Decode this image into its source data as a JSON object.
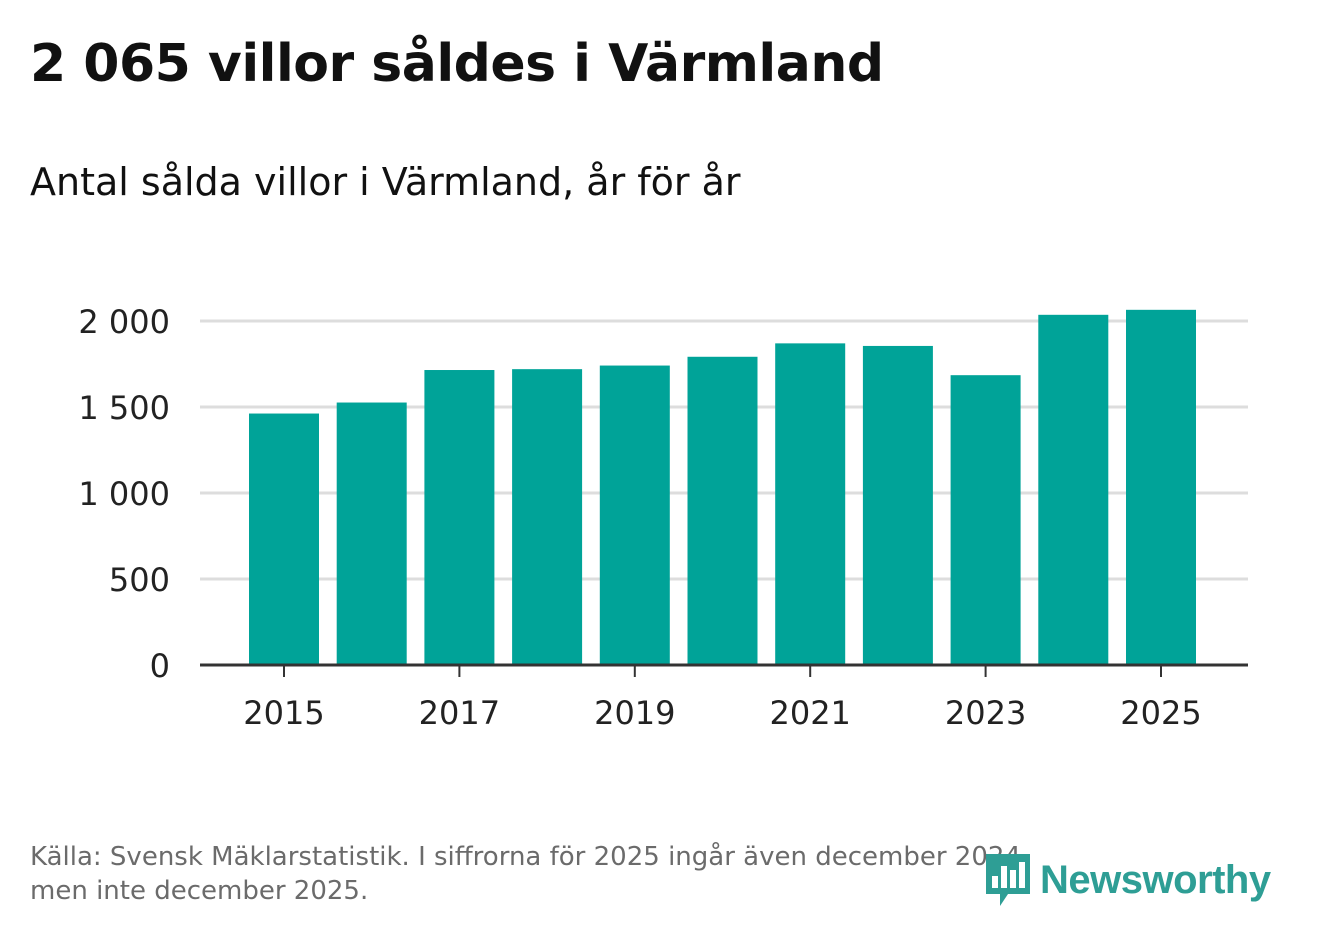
{
  "title": "2 065 villor såldes i Värmland",
  "subtitle": "Antal sålda villor i Värmland, år för år",
  "source_line1": "Källa: Svensk Mäklarstatistik. I siffrorna för 2025 ingår även december 2024,",
  "source_line2": "men inte december 2025.",
  "logo_text": "Newsworthy",
  "colors": {
    "bar": "#00a398",
    "grid": "#dddddd",
    "axis": "#333333",
    "text": "#222222",
    "logo": "#2e9e95"
  },
  "chart_data": {
    "type": "bar",
    "title": "2 065 villor såldes i Värmland",
    "subtitle": "Antal sålda villor i Värmland, år för år",
    "xlabel": "",
    "ylabel": "",
    "categories": [
      "2015",
      "2016",
      "2017",
      "2018",
      "2019",
      "2020",
      "2021",
      "2022",
      "2023",
      "2024",
      "2025"
    ],
    "values": [
      1462,
      1526,
      1715,
      1720,
      1741,
      1792,
      1870,
      1855,
      1685,
      2036,
      2065
    ],
    "ylim": [
      0,
      2000
    ],
    "yticks": [
      0,
      500,
      1000,
      1500,
      2000
    ],
    "ytick_labels": [
      "0",
      "500",
      "1 000",
      "1 500",
      "2 000"
    ],
    "xtick_labels": [
      "2015",
      "2017",
      "2019",
      "2021",
      "2023",
      "2025"
    ],
    "grid": true
  }
}
